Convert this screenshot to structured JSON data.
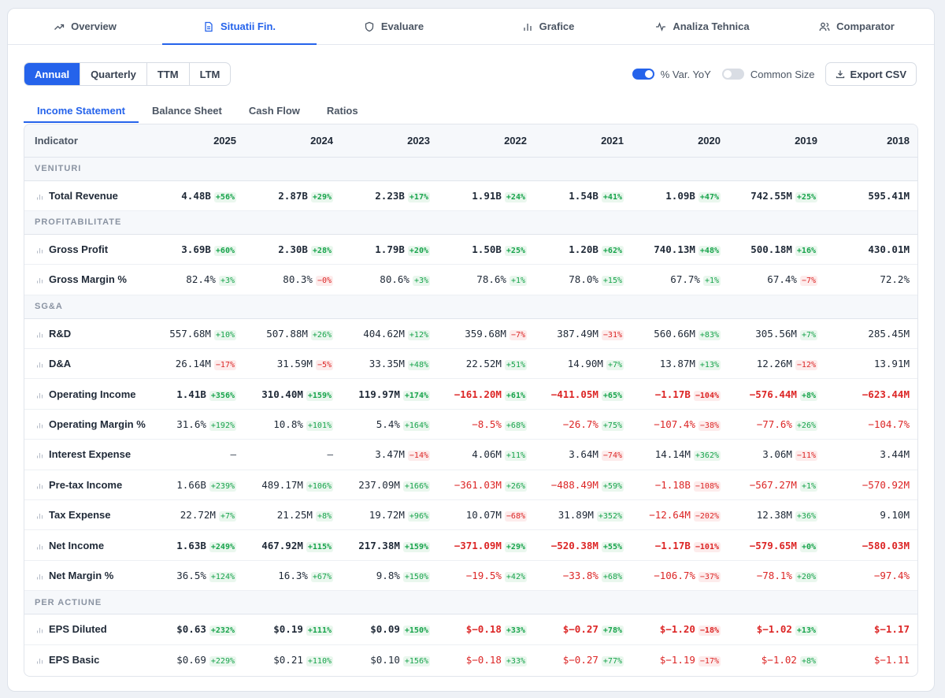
{
  "nav": {
    "tabs": [
      {
        "label": "Overview",
        "icon": "trend-icon"
      },
      {
        "label": "Situatii Fin.",
        "icon": "document-icon",
        "active": true
      },
      {
        "label": "Evaluare",
        "icon": "shield-icon"
      },
      {
        "label": "Grafice",
        "icon": "bar-chart-icon"
      },
      {
        "label": "Analiza Tehnica",
        "icon": "pulse-icon"
      },
      {
        "label": "Comparator",
        "icon": "users-icon"
      }
    ]
  },
  "controls": {
    "periods": [
      "Annual",
      "Quarterly",
      "TTM",
      "LTM"
    ],
    "active_period": "Annual",
    "toggle_yoy": {
      "label": "% Var. YoY",
      "on": true
    },
    "toggle_common": {
      "label": "Common Size",
      "on": false
    },
    "export_label": "Export CSV"
  },
  "subtabs": [
    "Income Statement",
    "Balance Sheet",
    "Cash Flow",
    "Ratios"
  ],
  "active_subtab": "Income Statement",
  "table": {
    "indicator_header": "Indicator",
    "years": [
      "2025",
      "2024",
      "2023",
      "2022",
      "2021",
      "2020",
      "2019",
      "2018"
    ],
    "colors": {
      "positive": "#16a34a",
      "negative": "#dc2626",
      "accent": "#2563eb"
    },
    "sections": [
      {
        "title": "VENITURI",
        "rows": [
          {
            "name": "Total Revenue",
            "bold": true,
            "cells": [
              {
                "v": "4.48B",
                "c": "+56%"
              },
              {
                "v": "2.87B",
                "c": "+29%"
              },
              {
                "v": "2.23B",
                "c": "+17%"
              },
              {
                "v": "1.91B",
                "c": "+24%"
              },
              {
                "v": "1.54B",
                "c": "+41%"
              },
              {
                "v": "1.09B",
                "c": "+47%"
              },
              {
                "v": "742.55M",
                "c": "+25%"
              },
              {
                "v": "595.41M"
              }
            ]
          }
        ]
      },
      {
        "title": "PROFITABILITATE",
        "rows": [
          {
            "name": "Gross Profit",
            "bold": true,
            "cells": [
              {
                "v": "3.69B",
                "c": "+60%"
              },
              {
                "v": "2.30B",
                "c": "+28%"
              },
              {
                "v": "1.79B",
                "c": "+20%"
              },
              {
                "v": "1.50B",
                "c": "+25%"
              },
              {
                "v": "1.20B",
                "c": "+62%"
              },
              {
                "v": "740.13M",
                "c": "+48%"
              },
              {
                "v": "500.18M",
                "c": "+16%"
              },
              {
                "v": "430.01M"
              }
            ]
          },
          {
            "name": "Gross Margin %",
            "bold": false,
            "cells": [
              {
                "v": "82.4%",
                "c": "+3%"
              },
              {
                "v": "80.3%",
                "c": "−0%"
              },
              {
                "v": "80.6%",
                "c": "+3%"
              },
              {
                "v": "78.6%",
                "c": "+1%"
              },
              {
                "v": "78.0%",
                "c": "+15%"
              },
              {
                "v": "67.7%",
                "c": "+1%"
              },
              {
                "v": "67.4%",
                "c": "−7%"
              },
              {
                "v": "72.2%"
              }
            ]
          }
        ]
      },
      {
        "title": "SG&A",
        "rows": [
          {
            "name": "R&D",
            "bold": false,
            "cells": [
              {
                "v": "557.68M",
                "c": "+10%"
              },
              {
                "v": "507.88M",
                "c": "+26%"
              },
              {
                "v": "404.62M",
                "c": "+12%"
              },
              {
                "v": "359.68M",
                "c": "−7%"
              },
              {
                "v": "387.49M",
                "c": "−31%"
              },
              {
                "v": "560.66M",
                "c": "+83%"
              },
              {
                "v": "305.56M",
                "c": "+7%"
              },
              {
                "v": "285.45M"
              }
            ]
          },
          {
            "name": "D&A",
            "bold": false,
            "cells": [
              {
                "v": "26.14M",
                "c": "−17%"
              },
              {
                "v": "31.59M",
                "c": "−5%"
              },
              {
                "v": "33.35M",
                "c": "+48%"
              },
              {
                "v": "22.52M",
                "c": "+51%"
              },
              {
                "v": "14.90M",
                "c": "+7%"
              },
              {
                "v": "13.87M",
                "c": "+13%"
              },
              {
                "v": "12.26M",
                "c": "−12%"
              },
              {
                "v": "13.91M"
              }
            ]
          },
          {
            "name": "Operating Income",
            "bold": true,
            "cells": [
              {
                "v": "1.41B",
                "c": "+356%"
              },
              {
                "v": "310.40M",
                "c": "+159%"
              },
              {
                "v": "119.97M",
                "c": "+174%"
              },
              {
                "v": "−161.20M",
                "c": "+61%"
              },
              {
                "v": "−411.05M",
                "c": "+65%"
              },
              {
                "v": "−1.17B",
                "c": "−104%"
              },
              {
                "v": "−576.44M",
                "c": "+8%"
              },
              {
                "v": "−623.44M"
              }
            ]
          },
          {
            "name": "Operating Margin %",
            "bold": false,
            "cells": [
              {
                "v": "31.6%",
                "c": "+192%"
              },
              {
                "v": "10.8%",
                "c": "+101%"
              },
              {
                "v": "5.4%",
                "c": "+164%"
              },
              {
                "v": "−8.5%",
                "c": "+68%"
              },
              {
                "v": "−26.7%",
                "c": "+75%"
              },
              {
                "v": "−107.4%",
                "c": "−38%"
              },
              {
                "v": "−77.6%",
                "c": "+26%"
              },
              {
                "v": "−104.7%"
              }
            ]
          },
          {
            "name": "Interest Expense",
            "bold": false,
            "cells": [
              {
                "v": "—"
              },
              {
                "v": "—"
              },
              {
                "v": "3.47M",
                "c": "−14%"
              },
              {
                "v": "4.06M",
                "c": "+11%"
              },
              {
                "v": "3.64M",
                "c": "−74%"
              },
              {
                "v": "14.14M",
                "c": "+362%"
              },
              {
                "v": "3.06M",
                "c": "−11%"
              },
              {
                "v": "3.44M"
              }
            ]
          },
          {
            "name": "Pre-tax Income",
            "bold": false,
            "cells": [
              {
                "v": "1.66B",
                "c": "+239%"
              },
              {
                "v": "489.17M",
                "c": "+106%"
              },
              {
                "v": "237.09M",
                "c": "+166%"
              },
              {
                "v": "−361.03M",
                "c": "+26%"
              },
              {
                "v": "−488.49M",
                "c": "+59%"
              },
              {
                "v": "−1.18B",
                "c": "−108%"
              },
              {
                "v": "−567.27M",
                "c": "+1%"
              },
              {
                "v": "−570.92M"
              }
            ]
          },
          {
            "name": "Tax Expense",
            "bold": false,
            "cells": [
              {
                "v": "22.72M",
                "c": "+7%"
              },
              {
                "v": "21.25M",
                "c": "+8%"
              },
              {
                "v": "19.72M",
                "c": "+96%"
              },
              {
                "v": "10.07M",
                "c": "−68%"
              },
              {
                "v": "31.89M",
                "c": "+352%"
              },
              {
                "v": "−12.64M",
                "c": "−202%"
              },
              {
                "v": "12.38M",
                "c": "+36%"
              },
              {
                "v": "9.10M"
              }
            ]
          },
          {
            "name": "Net Income",
            "bold": true,
            "cells": [
              {
                "v": "1.63B",
                "c": "+249%"
              },
              {
                "v": "467.92M",
                "c": "+115%"
              },
              {
                "v": "217.38M",
                "c": "+159%"
              },
              {
                "v": "−371.09M",
                "c": "+29%"
              },
              {
                "v": "−520.38M",
                "c": "+55%"
              },
              {
                "v": "−1.17B",
                "c": "−101%"
              },
              {
                "v": "−579.65M",
                "c": "+0%"
              },
              {
                "v": "−580.03M"
              }
            ]
          },
          {
            "name": "Net Margin %",
            "bold": false,
            "cells": [
              {
                "v": "36.5%",
                "c": "+124%"
              },
              {
                "v": "16.3%",
                "c": "+67%"
              },
              {
                "v": "9.8%",
                "c": "+150%"
              },
              {
                "v": "−19.5%",
                "c": "+42%"
              },
              {
                "v": "−33.8%",
                "c": "+68%"
              },
              {
                "v": "−106.7%",
                "c": "−37%"
              },
              {
                "v": "−78.1%",
                "c": "+20%"
              },
              {
                "v": "−97.4%"
              }
            ]
          }
        ]
      },
      {
        "title": "PER ACTIUNE",
        "rows": [
          {
            "name": "EPS Diluted",
            "bold": true,
            "cells": [
              {
                "v": "$0.63",
                "c": "+232%"
              },
              {
                "v": "$0.19",
                "c": "+111%"
              },
              {
                "v": "$0.09",
                "c": "+150%"
              },
              {
                "v": "$−0.18",
                "c": "+33%"
              },
              {
                "v": "$−0.27",
                "c": "+78%"
              },
              {
                "v": "$−1.20",
                "c": "−18%"
              },
              {
                "v": "$−1.02",
                "c": "+13%"
              },
              {
                "v": "$−1.17"
              }
            ]
          },
          {
            "name": "EPS Basic",
            "bold": false,
            "cells": [
              {
                "v": "$0.69",
                "c": "+229%"
              },
              {
                "v": "$0.21",
                "c": "+110%"
              },
              {
                "v": "$0.10",
                "c": "+156%"
              },
              {
                "v": "$−0.18",
                "c": "+33%"
              },
              {
                "v": "$−0.27",
                "c": "+77%"
              },
              {
                "v": "$−1.19",
                "c": "−17%"
              },
              {
                "v": "$−1.02",
                "c": "+8%"
              },
              {
                "v": "$−1.11"
              }
            ]
          }
        ]
      }
    ]
  }
}
